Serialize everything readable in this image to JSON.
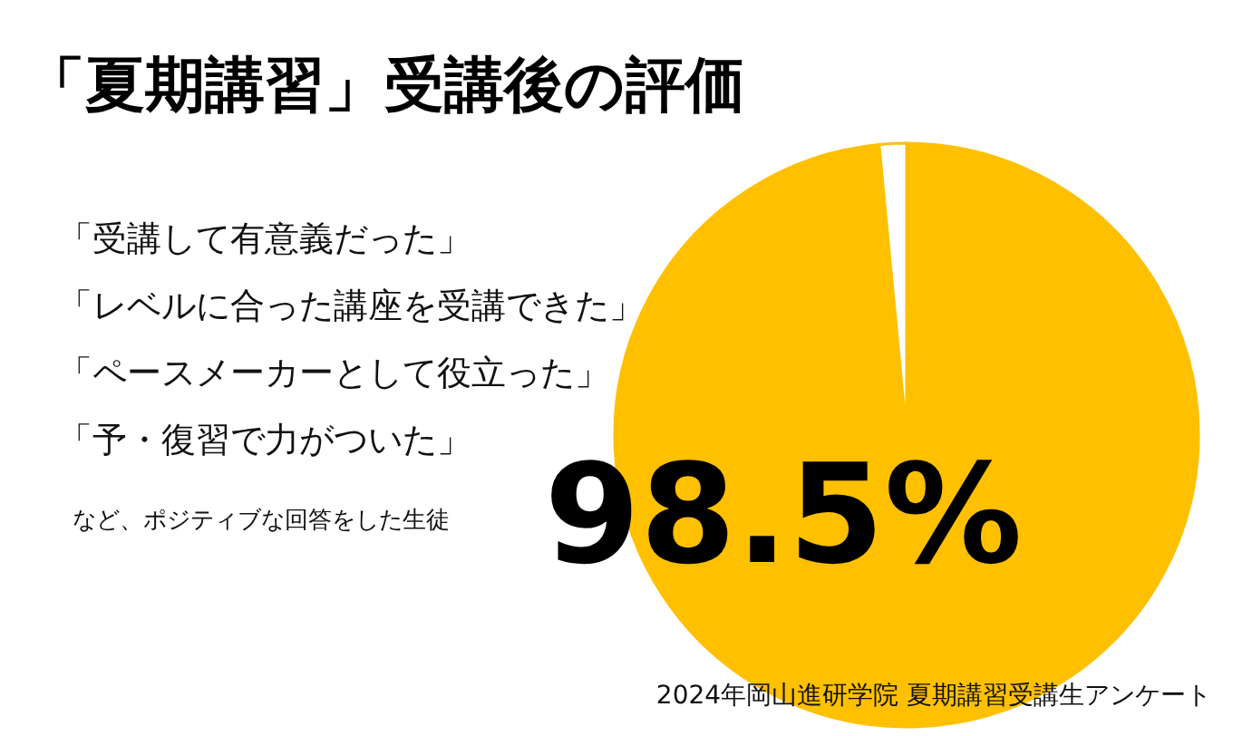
{
  "chart_data": {
    "type": "pie",
    "title": "「夏期講習」受講後の評価",
    "categories": [
      null,
      null
    ],
    "values": [
      98.5,
      1.5
    ],
    "colors": [
      "#ffc000",
      "#ffffff"
    ],
    "value_labels": [
      "98.5%",
      null
    ],
    "annotations": [
      "「受講して有意義だった」",
      "「レベルに合った講座を受講できた」",
      "「ペースメーカーとして役立った」",
      "「予・復習で力がついた」",
      "など、ポジティブな回答をした生徒",
      "2024年岡山進研学院 夏期講習受講生アンケート"
    ]
  }
}
